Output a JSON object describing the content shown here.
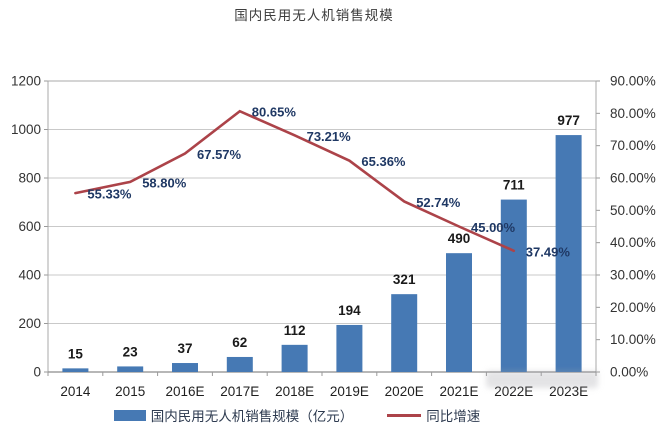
{
  "title": "国内民用无人机销售规模",
  "colors": {
    "bar": "#4679B4",
    "line": "#AC4349",
    "grid": "#C9C9C9",
    "plot_border": "#A8A8A8",
    "axis_line": "#8C8C8C",
    "tick": "#999999",
    "axis_text": "#333333",
    "category_text": "#1F1F1F",
    "bar_label": "#1A1A1A",
    "pct_label": "#1F3864",
    "background": "#FFFFFF"
  },
  "chart_data": {
    "type": "bar+line",
    "title": "国内民用无人机销售规模",
    "categories": [
      "2014",
      "2015",
      "2016E",
      "2017E",
      "2018E",
      "2019E",
      "2020E",
      "2021E",
      "2022E",
      "2023E"
    ],
    "series": [
      {
        "name": "国内民用无人机销售规模（亿元）",
        "type": "bar",
        "axis": "left",
        "values": [
          15,
          23,
          37,
          62,
          112,
          194,
          321,
          490,
          711,
          977
        ],
        "data_labels": [
          "15",
          "23",
          "37",
          "62",
          "112",
          "194",
          "321",
          "490",
          "711",
          "977"
        ]
      },
      {
        "name": "同比增速",
        "type": "line",
        "axis": "right",
        "values": [
          55.33,
          58.8,
          67.57,
          80.65,
          73.21,
          65.36,
          52.74,
          45.0,
          37.49
        ],
        "data_labels": [
          "55.33%",
          "58.80%",
          "67.57%",
          "80.65%",
          "73.21%",
          "65.36%",
          "52.74%",
          "45.00%",
          "37.49%"
        ]
      }
    ],
    "left_axis": {
      "min": 0,
      "max": 1200,
      "step": 200,
      "tick_labels": [
        "0",
        "200",
        "400",
        "600",
        "800",
        "1000",
        "1200"
      ]
    },
    "right_axis": {
      "min": 0,
      "max": 90,
      "step": 10,
      "tick_labels": [
        "0.00%",
        "10.00%",
        "20.00%",
        "30.00%",
        "40.00%",
        "50.00%",
        "60.00%",
        "70.00%",
        "80.00%",
        "90.00%"
      ]
    },
    "grid": "horizontal",
    "legend": {
      "position": "bottom",
      "entries": [
        {
          "label": "国内民用无人机销售规模（亿元）",
          "swatch": "bar"
        },
        {
          "label": "同比增速",
          "swatch": "line"
        }
      ]
    }
  }
}
